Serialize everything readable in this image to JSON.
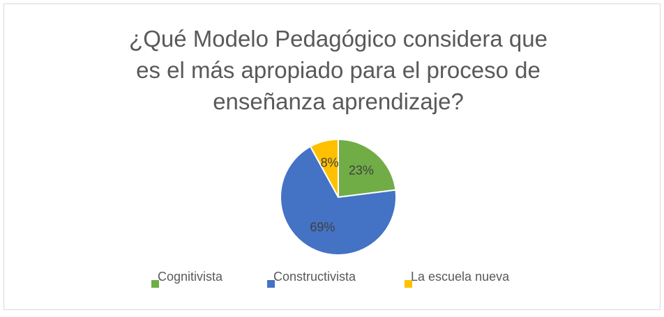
{
  "chart_data": {
    "type": "pie",
    "title": "¿Qué Modelo Pedagógico considera que\nes el más apropiado para el proceso de\nenseñanza aprendizaje?",
    "categories": [
      "Cognitivista",
      "Constructivista",
      "La escuela nueva"
    ],
    "values": [
      23,
      69,
      8
    ],
    "value_labels": [
      "23%",
      "69%",
      "8%"
    ],
    "colors": [
      "#70ad47",
      "#4472c4",
      "#ffc000"
    ],
    "legend": "bottom"
  }
}
